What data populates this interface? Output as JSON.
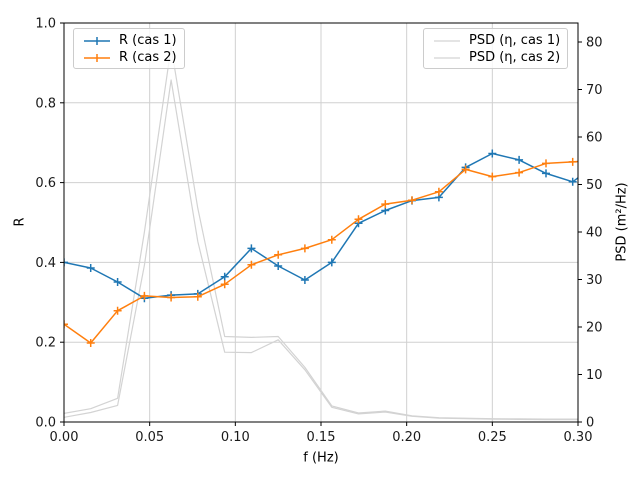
{
  "chart_data": {
    "type": "line",
    "title": "",
    "xlabel": "f (Hz)",
    "ylabel_left": "R",
    "ylabel_right": "PSD (m²/Hz)",
    "xlim": [
      0.0,
      0.3
    ],
    "ylim_left": [
      0.0,
      1.0
    ],
    "ylim_right": [
      0,
      84
    ],
    "grid": true,
    "x_ticks": [
      0.0,
      0.05,
      0.1,
      0.15,
      0.2,
      0.25,
      0.3
    ],
    "x_tick_labels": [
      "0.00",
      "0.05",
      "0.10",
      "0.15",
      "0.20",
      "0.25",
      "0.30"
    ],
    "y_ticks_left": [
      0.0,
      0.2,
      0.4,
      0.6,
      0.8,
      1.0
    ],
    "y_tick_labels_left": [
      "0.0",
      "0.2",
      "0.4",
      "0.6",
      "0.8",
      "1.0"
    ],
    "y_ticks_right": [
      0,
      10,
      20,
      30,
      40,
      50,
      60,
      70,
      80
    ],
    "y_tick_labels_right": [
      "0",
      "10",
      "20",
      "30",
      "40",
      "50",
      "60",
      "70",
      "80"
    ],
    "x": [
      0.0,
      0.0156,
      0.0313,
      0.0469,
      0.0625,
      0.0781,
      0.0938,
      0.1094,
      0.125,
      0.1406,
      0.1563,
      0.1719,
      0.1875,
      0.2031,
      0.2188,
      0.2344,
      0.25,
      0.2656,
      0.2813,
      0.2969,
      0.3
    ],
    "series": [
      {
        "name": "R (cas 1)",
        "axis": "left",
        "color": "#1f77b4",
        "marker": "plus",
        "marker_count": 20,
        "line_width": 1.5,
        "values": [
          0.4,
          0.386,
          0.351,
          0.31,
          0.318,
          0.321,
          0.364,
          0.435,
          0.391,
          0.356,
          0.4,
          0.498,
          0.53,
          0.555,
          0.563,
          0.638,
          0.673,
          0.657,
          0.623,
          0.602,
          0.612
        ]
      },
      {
        "name": "R (cas 2)",
        "axis": "left",
        "color": "#ff7f0e",
        "marker": "plus",
        "marker_count": 20,
        "line_width": 1.5,
        "values": [
          0.245,
          0.198,
          0.279,
          0.316,
          0.312,
          0.314,
          0.345,
          0.394,
          0.419,
          0.435,
          0.457,
          0.508,
          0.546,
          0.556,
          0.577,
          0.633,
          0.615,
          0.625,
          0.648,
          0.652,
          0.653
        ]
      },
      {
        "name": "PSD (η, cas 1)",
        "axis": "right",
        "color": "#d3d3d3",
        "marker": "none",
        "marker_count": 0,
        "line_width": 1.2,
        "values": [
          1.8,
          2.8,
          5.0,
          40,
          79,
          45,
          18.0,
          17.8,
          18.0,
          11.5,
          3.4,
          1.9,
          2.3,
          1.3,
          0.9,
          0.8,
          0.7,
          0.65,
          0.6,
          0.6,
          0.6
        ]
      },
      {
        "name": "PSD (η, cas 2)",
        "axis": "right",
        "color": "#d3d3d3",
        "marker": "none",
        "marker_count": 0,
        "line_width": 1.2,
        "values": [
          1.0,
          2.0,
          3.5,
          33,
          72,
          38,
          14.7,
          14.6,
          17.3,
          11.0,
          3.1,
          1.7,
          2.1,
          1.2,
          0.8,
          0.7,
          0.6,
          0.55,
          0.5,
          0.5,
          0.5
        ]
      }
    ],
    "legend_left": {
      "items": [
        {
          "label": "R (cas 1)",
          "color": "#1f77b4"
        },
        {
          "label": "R (cas 2)",
          "color": "#ff7f0e"
        }
      ]
    },
    "legend_right": {
      "items": [
        {
          "label": "PSD (η, cas 1)",
          "color": "#d3d3d3"
        },
        {
          "label": "PSD (η, cas 2)",
          "color": "#d3d3d3"
        }
      ]
    },
    "grid_color": "#d0d0d0",
    "spine_color": "#000000",
    "tick_label_color": "#1a1a1a"
  }
}
